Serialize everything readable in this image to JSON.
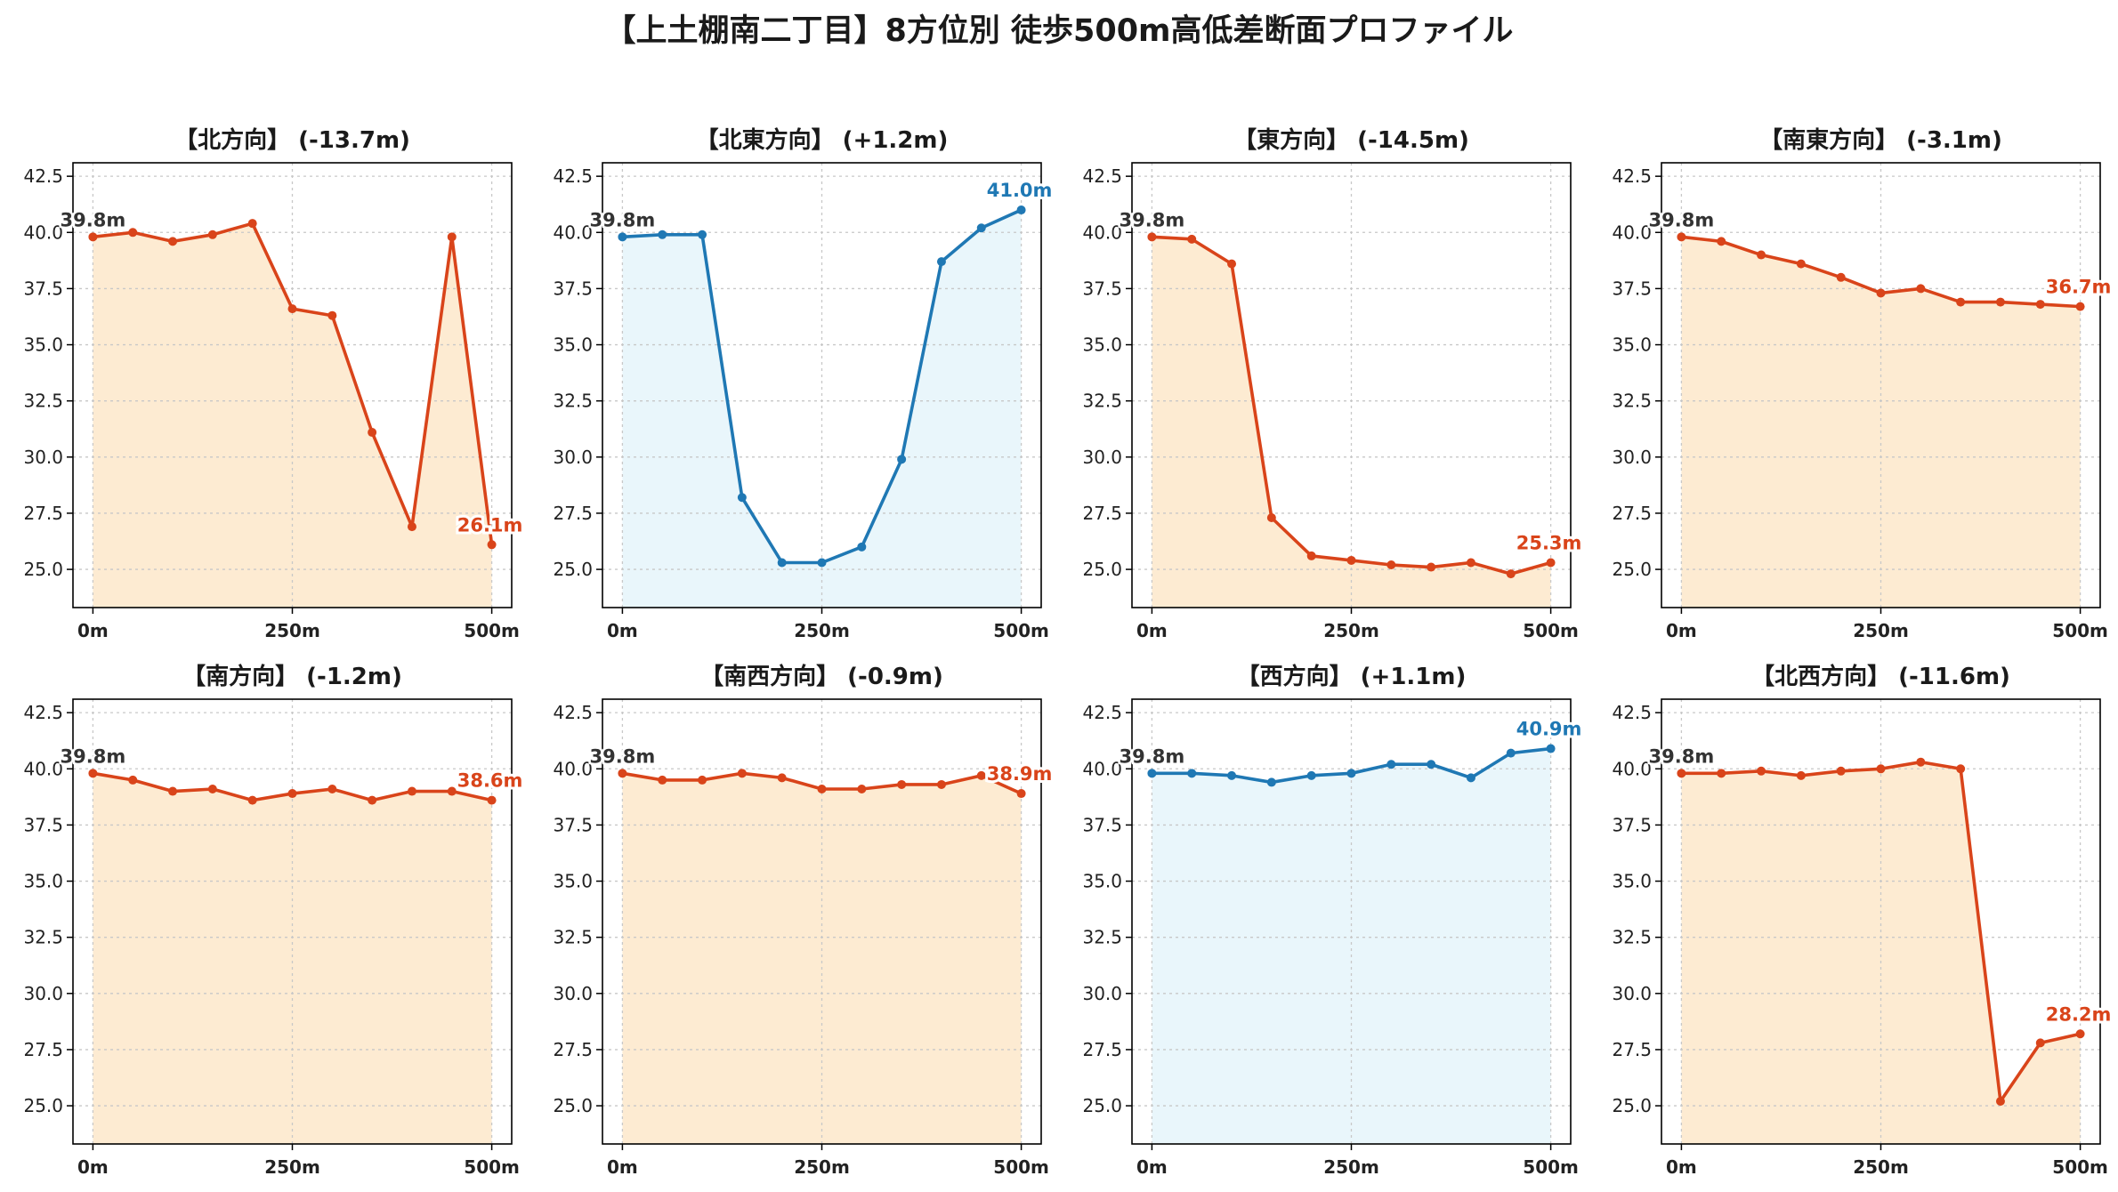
{
  "title": "【上土棚南二丁目】8方位別 徒歩500m高低差断面プロファイル",
  "colors": {
    "down": "#d9441a",
    "up": "#1f78b4",
    "down_fill": "#fdebd2",
    "up_fill": "#e9f6fb",
    "start_label": "#333333"
  },
  "chart_data": [
    {
      "type": "area",
      "title": "【北方向】 (-13.7m)",
      "trend": "down",
      "x": [
        0,
        50,
        100,
        150,
        200,
        250,
        300,
        350,
        400,
        450,
        500
      ],
      "y": [
        39.8,
        40.0,
        39.6,
        39.9,
        40.4,
        36.6,
        36.3,
        31.1,
        26.9,
        39.8,
        26.1
      ],
      "start_label": "39.8m",
      "end_label": "26.1m",
      "xticks": [
        "0m",
        "250m",
        "500m"
      ],
      "yticks": [
        "25.0",
        "27.5",
        "30.0",
        "32.5",
        "35.0",
        "37.5",
        "40.0",
        "42.5"
      ],
      "xlim": [
        -25,
        525
      ],
      "ylim": [
        23.3,
        43.1
      ],
      "grid": true
    },
    {
      "type": "area",
      "title": "【北東方向】 (+1.2m)",
      "trend": "up",
      "x": [
        0,
        50,
        100,
        150,
        200,
        250,
        300,
        350,
        400,
        450,
        500
      ],
      "y": [
        39.8,
        39.9,
        39.9,
        28.2,
        25.3,
        25.3,
        26.0,
        29.9,
        38.7,
        40.2,
        41.0
      ],
      "start_label": "39.8m",
      "end_label": "41.0m",
      "xticks": [
        "0m",
        "250m",
        "500m"
      ],
      "yticks": [
        "25.0",
        "27.5",
        "30.0",
        "32.5",
        "35.0",
        "37.5",
        "40.0",
        "42.5"
      ],
      "xlim": [
        -25,
        525
      ],
      "ylim": [
        23.3,
        43.1
      ],
      "grid": true
    },
    {
      "type": "area",
      "title": "【東方向】 (-14.5m)",
      "trend": "down",
      "x": [
        0,
        50,
        100,
        150,
        200,
        250,
        300,
        350,
        400,
        450,
        500
      ],
      "y": [
        39.8,
        39.7,
        38.6,
        27.3,
        25.6,
        25.4,
        25.2,
        25.1,
        25.3,
        24.8,
        25.3
      ],
      "start_label": "39.8m",
      "end_label": "25.3m",
      "xticks": [
        "0m",
        "250m",
        "500m"
      ],
      "yticks": [
        "25.0",
        "27.5",
        "30.0",
        "32.5",
        "35.0",
        "37.5",
        "40.0",
        "42.5"
      ],
      "xlim": [
        -25,
        525
      ],
      "ylim": [
        23.3,
        43.1
      ],
      "grid": true
    },
    {
      "type": "area",
      "title": "【南東方向】 (-3.1m)",
      "trend": "down",
      "x": [
        0,
        50,
        100,
        150,
        200,
        250,
        300,
        350,
        400,
        450,
        500
      ],
      "y": [
        39.8,
        39.6,
        39.0,
        38.6,
        38.0,
        37.3,
        37.5,
        36.9,
        36.9,
        36.8,
        36.7
      ],
      "start_label": "39.8m",
      "end_label": "36.7m",
      "xticks": [
        "0m",
        "250m",
        "500m"
      ],
      "yticks": [
        "25.0",
        "27.5",
        "30.0",
        "32.5",
        "35.0",
        "37.5",
        "40.0",
        "42.5"
      ],
      "xlim": [
        -25,
        525
      ],
      "ylim": [
        23.3,
        43.1
      ],
      "grid": true
    },
    {
      "type": "area",
      "title": "【南方向】 (-1.2m)",
      "trend": "down",
      "x": [
        0,
        50,
        100,
        150,
        200,
        250,
        300,
        350,
        400,
        450,
        500
      ],
      "y": [
        39.8,
        39.5,
        39.0,
        39.1,
        38.6,
        38.9,
        39.1,
        38.6,
        39.0,
        39.0,
        38.6
      ],
      "start_label": "39.8m",
      "end_label": "38.6m",
      "xticks": [
        "0m",
        "250m",
        "500m"
      ],
      "yticks": [
        "25.0",
        "27.5",
        "30.0",
        "32.5",
        "35.0",
        "37.5",
        "40.0",
        "42.5"
      ],
      "xlim": [
        -25,
        525
      ],
      "ylim": [
        23.3,
        43.1
      ],
      "grid": true
    },
    {
      "type": "area",
      "title": "【南西方向】 (-0.9m)",
      "trend": "down",
      "x": [
        0,
        50,
        100,
        150,
        200,
        250,
        300,
        350,
        400,
        450,
        500
      ],
      "y": [
        39.8,
        39.5,
        39.5,
        39.8,
        39.6,
        39.1,
        39.1,
        39.3,
        39.3,
        39.7,
        38.9
      ],
      "start_label": "39.8m",
      "end_label": "38.9m",
      "xticks": [
        "0m",
        "250m",
        "500m"
      ],
      "yticks": [
        "25.0",
        "27.5",
        "30.0",
        "32.5",
        "35.0",
        "37.5",
        "40.0",
        "42.5"
      ],
      "xlim": [
        -25,
        525
      ],
      "ylim": [
        23.3,
        43.1
      ],
      "grid": true
    },
    {
      "type": "area",
      "title": "【西方向】 (+1.1m)",
      "trend": "up",
      "x": [
        0,
        50,
        100,
        150,
        200,
        250,
        300,
        350,
        400,
        450,
        500
      ],
      "y": [
        39.8,
        39.8,
        39.7,
        39.4,
        39.7,
        39.8,
        40.2,
        40.2,
        39.6,
        40.7,
        40.9
      ],
      "start_label": "39.8m",
      "end_label": "40.9m",
      "xticks": [
        "0m",
        "250m",
        "500m"
      ],
      "yticks": [
        "25.0",
        "27.5",
        "30.0",
        "32.5",
        "35.0",
        "37.5",
        "40.0",
        "42.5"
      ],
      "xlim": [
        -25,
        525
      ],
      "ylim": [
        23.3,
        43.1
      ],
      "grid": true
    },
    {
      "type": "area",
      "title": "【北西方向】 (-11.6m)",
      "trend": "down",
      "x": [
        0,
        50,
        100,
        150,
        200,
        250,
        300,
        350,
        400,
        450,
        500
      ],
      "y": [
        39.8,
        39.8,
        39.9,
        39.7,
        39.9,
        40.0,
        40.3,
        40.0,
        25.2,
        27.8,
        28.2
      ],
      "start_label": "39.8m",
      "end_label": "28.2m",
      "xticks": [
        "0m",
        "250m",
        "500m"
      ],
      "yticks": [
        "25.0",
        "27.5",
        "30.0",
        "32.5",
        "35.0",
        "37.5",
        "40.0",
        "42.5"
      ],
      "xlim": [
        -25,
        525
      ],
      "ylim": [
        23.3,
        43.1
      ],
      "grid": true
    }
  ]
}
